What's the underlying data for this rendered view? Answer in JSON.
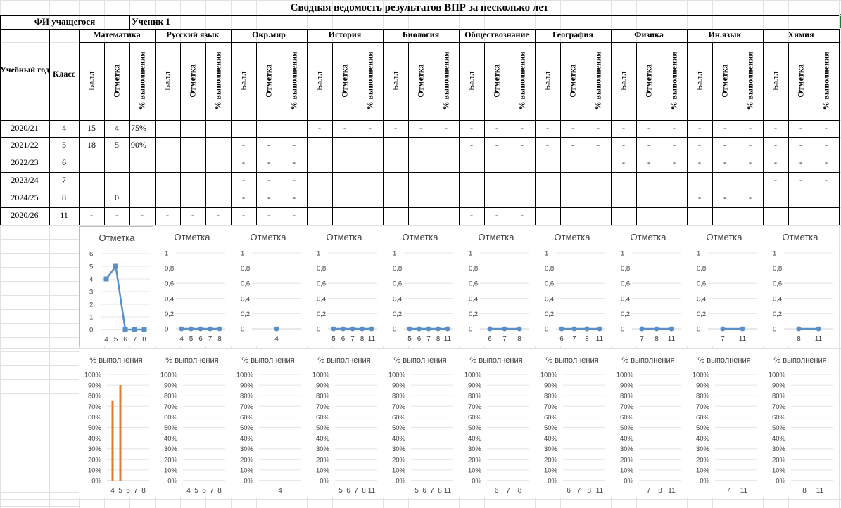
{
  "sheet": {
    "title": "Сводная ведомость результатов ВПР за несколько лет",
    "student_label": "ФИ учащегося",
    "student_name": "Ученик 1",
    "year_header": "Учебный год",
    "class_header": "Класс",
    "col_labels": [
      "Балл",
      "Отметка",
      "% выполнения"
    ],
    "subjects": [
      "Математика",
      "Русский язык",
      "Окр.мир",
      "История",
      "Биология",
      "Обществознание",
      "География",
      "Физика",
      "Ин.язык",
      "Химия"
    ],
    "rows": [
      {
        "year": "2020/21",
        "class": "4",
        "cells": [
          "15",
          "4",
          "75%",
          "",
          "",
          "",
          "",
          "",
          "",
          "-",
          "-",
          "-",
          "-",
          "-",
          "-",
          "-",
          "-",
          "-",
          "-",
          "-",
          "-",
          "-",
          "-",
          "-",
          "-",
          "-",
          "-",
          "-",
          "-",
          "-"
        ]
      },
      {
        "year": "2021/22",
        "class": "5",
        "cells": [
          "18",
          "5",
          "90%",
          "",
          "",
          "",
          "-",
          "-",
          "-",
          "",
          "",
          "",
          "",
          "",
          "",
          "-",
          "-",
          "-",
          "-",
          "-",
          "-",
          "-",
          "-",
          "-",
          "-",
          "-",
          "-",
          "-",
          "-",
          "-"
        ]
      },
      {
        "year": "2022/23",
        "class": "6",
        "cells": [
          "",
          "",
          "",
          "",
          "",
          "",
          "-",
          "-",
          "-",
          "",
          "",
          "",
          "",
          "",
          "",
          "",
          "",
          "",
          "",
          "",
          "",
          "-",
          "-",
          "-",
          "-",
          "-",
          "-",
          "-",
          "-",
          "-"
        ]
      },
      {
        "year": "2023/24",
        "class": "7",
        "cells": [
          "",
          "",
          "",
          "",
          "",
          "",
          "-",
          "-",
          "-",
          "",
          "",
          "",
          "",
          "",
          "",
          "",
          "",
          "",
          "",
          "",
          "",
          "",
          "",
          "",
          "",
          "",
          "",
          "-",
          "-",
          "-"
        ]
      },
      {
        "year": "2024/25",
        "class": "8",
        "cells": [
          "",
          "0",
          "",
          "",
          "",
          "",
          "-",
          "-",
          "-",
          "",
          "",
          "",
          "",
          "",
          "",
          "",
          "",
          "",
          "",
          "",
          "",
          "",
          "",
          "",
          "-",
          "-",
          "-",
          "",
          "",
          ""
        ]
      },
      {
        "year": "2020/26",
        "class": "11",
        "cells": [
          "-",
          "-",
          "-",
          "-",
          "-",
          "-",
          "-",
          "-",
          "-",
          "",
          "",
          "",
          "",
          "",
          "",
          "-",
          "-",
          "-",
          "",
          "",
          "",
          "",
          "",
          "",
          "",
          "",
          "",
          "",
          "",
          ""
        ]
      }
    ]
  },
  "charts": {
    "mark_title": "Отметка",
    "pct_title": "% выполнения",
    "mark_ticks_math": [
      "6",
      "5",
      "4",
      "3",
      "2",
      "1",
      "0"
    ],
    "mark_ticks_other": [
      "1",
      "0,8",
      "0,6",
      "0,4",
      "0,2",
      "0"
    ],
    "pct_ticks": [
      "100%",
      "90%",
      "80%",
      "70%",
      "60%",
      "50%",
      "40%",
      "30%",
      "20%",
      "10%",
      "0%"
    ],
    "series_color_line": "#5b8fc7",
    "series_color_bar": "#e07b30"
  },
  "chart_data": [
    {
      "type": "line",
      "subject": "Математика",
      "title": "Отметка",
      "categories": [
        "4",
        "5",
        "6",
        "7",
        "8"
      ],
      "values": [
        4,
        5,
        0,
        0,
        0
      ],
      "ylim": [
        0,
        6
      ]
    },
    {
      "type": "line",
      "subject": "Русский язык",
      "title": "Отметка",
      "categories": [
        "4",
        "5",
        "6",
        "7",
        "8"
      ],
      "values": [
        0,
        0,
        0,
        0,
        0
      ],
      "ylim": [
        0,
        1
      ]
    },
    {
      "type": "line",
      "subject": "Окр.мир",
      "title": "Отметка",
      "categories": [
        "4"
      ],
      "values": [
        0
      ],
      "ylim": [
        0,
        1
      ]
    },
    {
      "type": "line",
      "subject": "История",
      "title": "Отметка",
      "categories": [
        "5",
        "6",
        "7",
        "8",
        "11"
      ],
      "values": [
        0,
        0,
        0,
        0,
        0
      ],
      "ylim": [
        0,
        1
      ]
    },
    {
      "type": "line",
      "subject": "Биология",
      "title": "Отметка",
      "categories": [
        "5",
        "6",
        "7",
        "8",
        "11"
      ],
      "values": [
        0,
        0,
        0,
        0,
        0
      ],
      "ylim": [
        0,
        1
      ]
    },
    {
      "type": "line",
      "subject": "Обществознание",
      "title": "Отметка",
      "categories": [
        "6",
        "7",
        "8"
      ],
      "values": [
        0,
        0,
        0
      ],
      "ylim": [
        0,
        1
      ]
    },
    {
      "type": "line",
      "subject": "География",
      "title": "Отметка",
      "categories": [
        "6",
        "7",
        "8",
        "11"
      ],
      "values": [
        0,
        0,
        0,
        0
      ],
      "ylim": [
        0,
        1
      ]
    },
    {
      "type": "line",
      "subject": "Физика",
      "title": "Отметка",
      "categories": [
        "7",
        "8",
        "11"
      ],
      "values": [
        0,
        0,
        0
      ],
      "ylim": [
        0,
        1
      ]
    },
    {
      "type": "line",
      "subject": "Ин.язык",
      "title": "Отметка",
      "categories": [
        "7",
        "11"
      ],
      "values": [
        0,
        0
      ],
      "ylim": [
        0,
        1
      ]
    },
    {
      "type": "line",
      "subject": "Химия",
      "title": "Отметка",
      "categories": [
        "8",
        "11"
      ],
      "values": [
        0,
        0
      ],
      "ylim": [
        0,
        1
      ]
    },
    {
      "type": "bar",
      "subject": "Математика",
      "title": "% выполнения",
      "categories": [
        "4",
        "5",
        "6",
        "7",
        "8"
      ],
      "values": [
        75,
        90,
        0,
        0,
        0
      ],
      "ylim": [
        0,
        100
      ]
    },
    {
      "type": "bar",
      "subject": "Русский язык",
      "title": "% выполнения",
      "categories": [
        "4",
        "5",
        "6",
        "7",
        "8"
      ],
      "values": [
        0,
        0,
        0,
        0,
        0
      ],
      "ylim": [
        0,
        100
      ]
    },
    {
      "type": "bar",
      "subject": "Окр.мир",
      "title": "% выполнения",
      "categories": [
        "4"
      ],
      "values": [
        0
      ],
      "ylim": [
        0,
        100
      ]
    },
    {
      "type": "bar",
      "subject": "История",
      "title": "% выполнения",
      "categories": [
        "5",
        "6",
        "7",
        "8",
        "11"
      ],
      "values": [
        0,
        0,
        0,
        0,
        0
      ],
      "ylim": [
        0,
        100
      ]
    },
    {
      "type": "bar",
      "subject": "Биология",
      "title": "% выполнения",
      "categories": [
        "5",
        "6",
        "7",
        "8",
        "11"
      ],
      "values": [
        0,
        0,
        0,
        0,
        0
      ],
      "ylim": [
        0,
        100
      ]
    },
    {
      "type": "bar",
      "subject": "Обществознание",
      "title": "% выполнения",
      "categories": [
        "6",
        "7",
        "8"
      ],
      "values": [
        0,
        0,
        0
      ],
      "ylim": [
        0,
        100
      ]
    },
    {
      "type": "bar",
      "subject": "География",
      "title": "% выполнения",
      "categories": [
        "6",
        "7",
        "8",
        "11"
      ],
      "values": [
        0,
        0,
        0,
        0
      ],
      "ylim": [
        0,
        100
      ]
    },
    {
      "type": "bar",
      "subject": "Физика",
      "title": "% выполнения",
      "categories": [
        "7",
        "8",
        "11"
      ],
      "values": [
        0,
        0,
        0
      ],
      "ylim": [
        0,
        100
      ]
    },
    {
      "type": "bar",
      "subject": "Ин.язык",
      "title": "% выполнения",
      "categories": [
        "7",
        "11"
      ],
      "values": [
        0,
        0
      ],
      "ylim": [
        0,
        100
      ]
    },
    {
      "type": "bar",
      "subject": "Химия",
      "title": "% выполнения",
      "categories": [
        "8",
        "11"
      ],
      "values": [
        0,
        0
      ],
      "ylim": [
        0,
        100
      ]
    }
  ]
}
